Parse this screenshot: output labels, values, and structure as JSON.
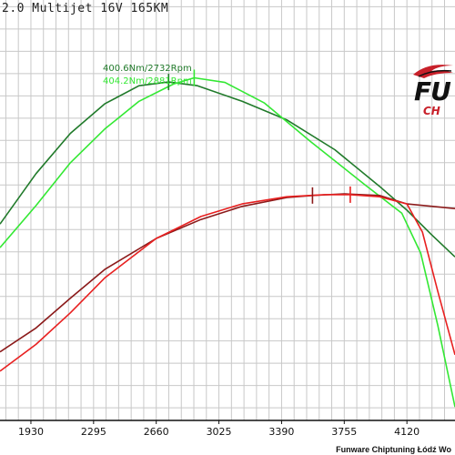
{
  "title": "2.0 Multijet 16V 165KM",
  "credit": "Funware Chiptuning Łódź Wo",
  "logo": {
    "main": "FU",
    "sub": "CH"
  },
  "colors": {
    "torque_stock": "#207a2a",
    "torque_tuned": "#33e833",
    "power_stock": "#8b1a1a",
    "power_tuned": "#e82020",
    "grid": "#c8c8c8",
    "logo_red": "#c8202a"
  },
  "chart_data": {
    "type": "line",
    "xlim": [
      1750,
      4400
    ],
    "ylim": [
      0,
      100
    ],
    "grid": true,
    "x_ticks": [
      1930,
      2295,
      2660,
      3025,
      3390,
      3755,
      4120
    ],
    "annotations": [
      {
        "text": "400.6Nm/2732Rpm",
        "series": "torque_stock",
        "x": 2732,
        "y": 80.5
      },
      {
        "text": "404.2Nm/2881Rpm",
        "series": "torque_tuned",
        "x": 2881,
        "y": 81.5
      }
    ],
    "markers": [
      {
        "series": "torque_stock",
        "x": 2732,
        "y": 80.5
      },
      {
        "series": "torque_tuned",
        "x": 2881,
        "y": 81.5
      },
      {
        "series": "power_stock",
        "x": 3570,
        "y": 53.5
      },
      {
        "series": "power_tuned",
        "x": 3790,
        "y": 53.7
      }
    ],
    "series": [
      {
        "key": "torque_stock",
        "color": "#207a2a",
        "x": [
          1750,
          1960,
          2160,
          2360,
          2560,
          2732,
          2900,
          3160,
          3420,
          3700,
          3960,
          4120,
          4260,
          4400
        ],
        "y": [
          46.7,
          58.7,
          68.3,
          75.3,
          79.6,
          80.5,
          79.6,
          75.9,
          71.5,
          64.4,
          55.7,
          50.0,
          44.3,
          38.9
        ]
      },
      {
        "key": "torque_tuned",
        "color": "#33e833",
        "x": [
          1750,
          1960,
          2160,
          2360,
          2560,
          2760,
          2881,
          3060,
          3290,
          3560,
          3880,
          4090,
          4200,
          4300,
          4400
        ],
        "y": [
          41.1,
          51.1,
          61.3,
          69.3,
          75.9,
          80.0,
          81.5,
          80.4,
          75.5,
          66.3,
          55.9,
          49.3,
          39.8,
          22.6,
          3.2
        ]
      },
      {
        "key": "power_stock",
        "color": "#8b1a1a",
        "x": [
          1750,
          1960,
          2160,
          2360,
          2660,
          2920,
          3160,
          3420,
          3570,
          3755,
          3960,
          4120,
          4270,
          4400
        ],
        "y": [
          16.3,
          22.0,
          29.1,
          35.9,
          43.3,
          47.8,
          50.9,
          53.0,
          53.5,
          53.9,
          53.5,
          51.5,
          50.9,
          50.4
        ]
      },
      {
        "key": "power_tuned",
        "color": "#e82020",
        "x": [
          1750,
          1960,
          2160,
          2360,
          2660,
          2920,
          3160,
          3420,
          3640,
          3790,
          3960,
          4120,
          4210,
          4300,
          4400
        ],
        "y": [
          11.7,
          18.1,
          25.6,
          33.9,
          43.3,
          48.5,
          51.5,
          53.2,
          53.7,
          53.7,
          53.2,
          51.5,
          44.8,
          30.7,
          15.6
        ]
      }
    ]
  }
}
